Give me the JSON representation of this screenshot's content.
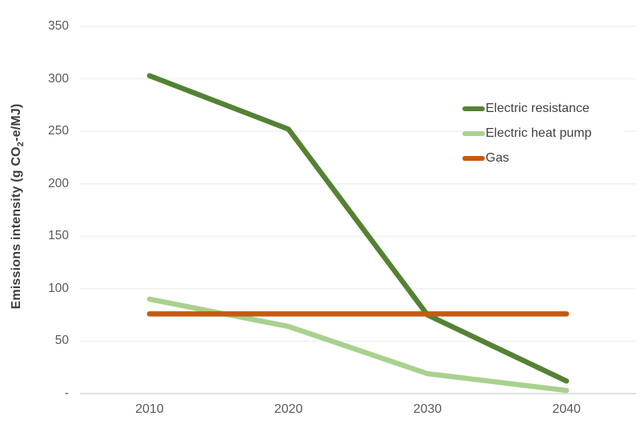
{
  "chart_data": {
    "type": "line",
    "title": "",
    "xlabel": "",
    "ylabel": "Emissions intensity (g CO₂-e/MJ)",
    "ylabel_parts": {
      "pre": "Emissions intensity (g CO",
      "sub": "2",
      "post": "-e/MJ)"
    },
    "categories": [
      "2010",
      "2020",
      "2030",
      "2040"
    ],
    "series": [
      {
        "name": "Electric resistance",
        "color": "#548235",
        "values": [
          303,
          252,
          75,
          12
        ]
      },
      {
        "name": "Electric heat pump",
        "color": "#a9d18e",
        "values": [
          90,
          64,
          19,
          3
        ]
      },
      {
        "name": "Gas",
        "color": "#c55a11",
        "values": [
          76,
          76,
          76,
          76
        ]
      }
    ],
    "ylim": [
      0,
      350
    ],
    "yticks": [
      {
        "label": "350",
        "value": 350
      },
      {
        "label": "300",
        "value": 300
      },
      {
        "label": "250",
        "value": 250
      },
      {
        "label": "200",
        "value": 200
      },
      {
        "label": "150",
        "value": 150
      },
      {
        "label": "100",
        "value": 100
      },
      {
        "label": "50",
        "value": 50
      },
      {
        "label": "-",
        "value": 0
      }
    ],
    "grid": "horizontal",
    "legend_position": "right-center"
  },
  "palette": {
    "background": "#ffffff",
    "gridline": "#ededed",
    "axis_line": "#d7d7d7",
    "tick_text": "#595959",
    "axis_title_text": "#3b3b3b",
    "legend_text": "#404040"
  }
}
